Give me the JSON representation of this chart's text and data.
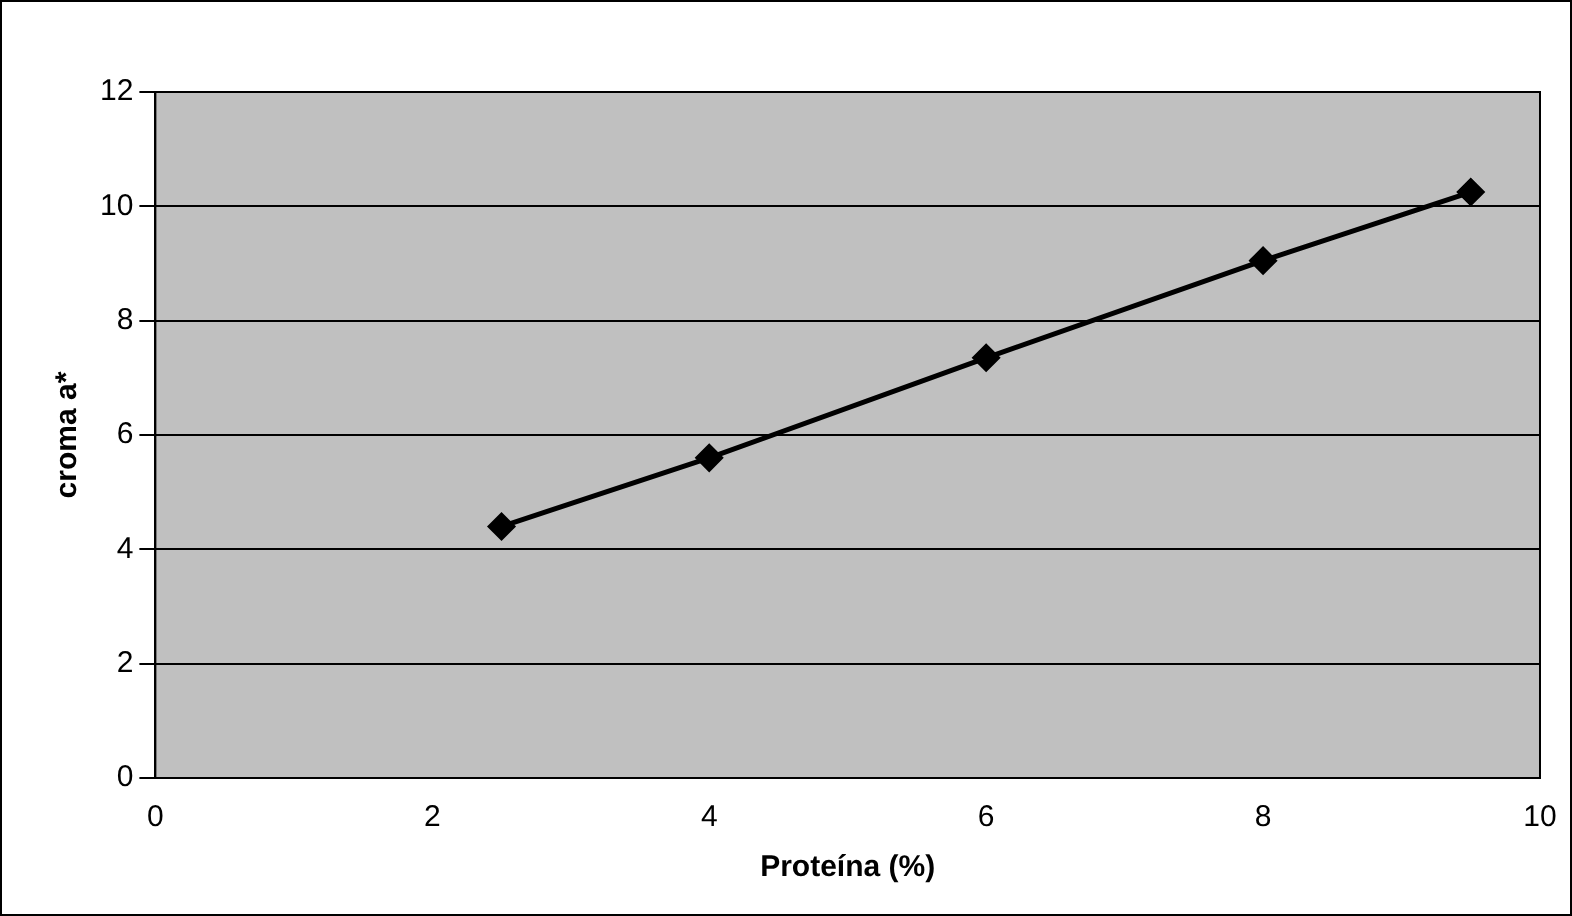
{
  "chart_data": {
    "type": "line",
    "xlabel": "Proteína (%)",
    "ylabel": "croma a*",
    "x": [
      2.5,
      4,
      6,
      8,
      9.5
    ],
    "series": [
      {
        "color": "#000000",
        "values": [
          4.4,
          5.6,
          7.35,
          9.05,
          10.25
        ]
      }
    ],
    "xlim": [
      0,
      10
    ],
    "xticks": [
      0,
      2,
      4,
      6,
      8,
      10
    ],
    "ylim": [
      0,
      12
    ],
    "yticks": [
      0,
      2,
      4,
      6,
      8,
      10,
      12
    ],
    "grid": "y",
    "legend": false,
    "marker": "diamond",
    "line_style": "solid"
  }
}
